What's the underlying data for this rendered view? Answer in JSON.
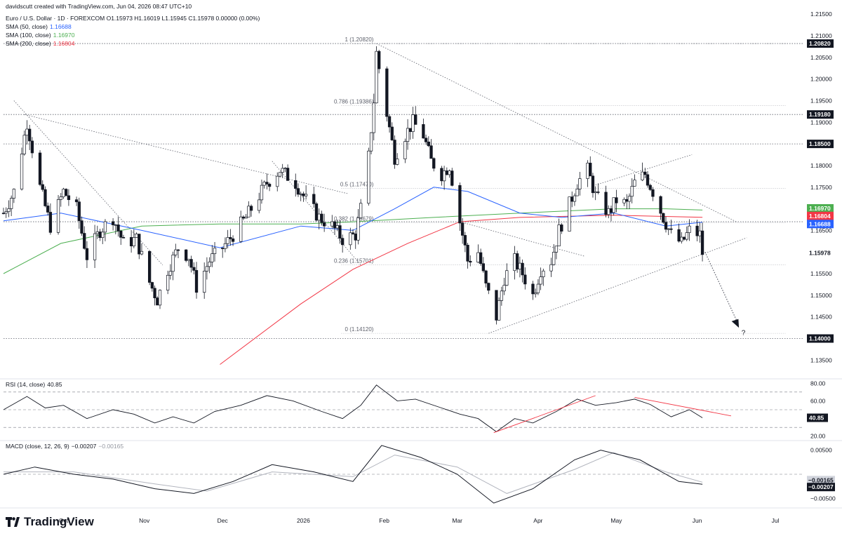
{
  "header": {
    "creator_line": "davidscutt created with TradingView.com, Jun 04, 2026 08:47 UTC+10",
    "symbol_line": "Euro / U.S. Dollar · 1D · FOREXCOM  O1.15973  H1.16019  L1.15945  C1.15978  0.00000 (0.00%)",
    "sma50_label": "SMA (50, close)",
    "sma50_value": "1.16688",
    "sma100_label": "SMA (100, close)",
    "sma100_value": "1.16970",
    "sma200_label": "SMA (200, close)",
    "sma200_value": "1.16804"
  },
  "rsi_header": {
    "label": "RSI (14, close)",
    "value": "40.85"
  },
  "macd_header": {
    "label": "MACD (close, 12, 26, 9)",
    "value1": "−0.00207",
    "value2": "−0.00165"
  },
  "footer": {
    "brand": "TradingView"
  },
  "colors": {
    "up": "#ffffff",
    "down": "#131722",
    "sma50": "#2962ff",
    "sma100": "#4caf50",
    "sma200": "#f23645",
    "rsi": "#131722",
    "macd": "#131722",
    "signal": "#b2b5be",
    "trend_red": "#f23645"
  },
  "chart_data": {
    "type": "candlestick",
    "symbol": "EUR/USD",
    "timeframe": "1D",
    "ylim": [
      1.131,
      1.216
    ],
    "y_ticks": [
      "1.21500",
      "1.21000",
      "1.20500",
      "1.20000",
      "1.19500",
      "1.19000",
      "1.18000",
      "1.17500",
      "1.16500",
      "1.15500",
      "1.15000",
      "1.14500",
      "1.13500"
    ],
    "x_ticks": [
      {
        "label": "Oct",
        "date": "2025-10-01"
      },
      {
        "label": "Nov",
        "date": "2025-11-01"
      },
      {
        "label": "Dec",
        "date": "2025-12-01"
      },
      {
        "label": "2026",
        "date": "2026-01-01"
      },
      {
        "label": "Feb",
        "date": "2026-02-01"
      },
      {
        "label": "Mar",
        "date": "2026-03-01"
      },
      {
        "label": "Apr",
        "date": "2026-04-01"
      },
      {
        "label": "May",
        "date": "2026-05-01"
      },
      {
        "label": "Jun",
        "date": "2026-06-01"
      },
      {
        "label": "Jul",
        "date": "2026-07-01"
      }
    ],
    "close_path": [
      [
        "2025-09-08",
        1.169
      ],
      [
        "2025-09-12",
        1.174
      ],
      [
        "2025-09-17",
        1.19
      ],
      [
        "2025-09-22",
        1.175
      ],
      [
        "2025-09-26",
        1.166
      ],
      [
        "2025-10-01",
        1.174
      ],
      [
        "2025-10-06",
        1.17
      ],
      [
        "2025-10-10",
        1.159
      ],
      [
        "2025-10-15",
        1.165
      ],
      [
        "2025-10-20",
        1.168
      ],
      [
        "2025-10-24",
        1.162
      ],
      [
        "2025-10-29",
        1.163
      ],
      [
        "2025-11-03",
        1.153
      ],
      [
        "2025-11-06",
        1.149
      ],
      [
        "2025-11-10",
        1.156
      ],
      [
        "2025-11-14",
        1.161
      ],
      [
        "2025-11-18",
        1.159
      ],
      [
        "2025-11-21",
        1.152
      ],
      [
        "2025-11-26",
        1.158
      ],
      [
        "2025-12-01",
        1.161
      ],
      [
        "2025-12-05",
        1.164
      ],
      [
        "2025-12-10",
        1.168
      ],
      [
        "2025-12-15",
        1.173
      ],
      [
        "2025-12-18",
        1.176
      ],
      [
        "2025-12-23",
        1.179
      ],
      [
        "2025-12-29",
        1.176
      ],
      [
        "2026-01-02",
        1.172
      ],
      [
        "2026-01-07",
        1.168
      ],
      [
        "2026-01-12",
        1.166
      ],
      [
        "2026-01-16",
        1.163
      ],
      [
        "2026-01-21",
        1.164
      ],
      [
        "2026-01-23",
        1.17
      ],
      [
        "2026-01-26",
        1.182
      ],
      [
        "2026-01-28",
        1.195
      ],
      [
        "2026-01-29",
        1.206
      ],
      [
        "2026-02-02",
        1.192
      ],
      [
        "2026-02-05",
        1.182
      ],
      [
        "2026-02-09",
        1.187
      ],
      [
        "2026-02-12",
        1.19
      ],
      [
        "2026-02-16",
        1.187
      ],
      [
        "2026-02-19",
        1.181
      ],
      [
        "2026-02-23",
        1.178
      ],
      [
        "2026-02-26",
        1.18
      ],
      [
        "2026-03-02",
        1.167
      ],
      [
        "2026-03-05",
        1.158
      ],
      [
        "2026-03-09",
        1.16
      ],
      [
        "2026-03-12",
        1.152
      ],
      [
        "2026-03-16",
        1.145
      ],
      [
        "2026-03-19",
        1.154
      ],
      [
        "2026-03-23",
        1.158
      ],
      [
        "2026-03-26",
        1.155
      ],
      [
        "2026-03-30",
        1.15
      ],
      [
        "2026-04-02",
        1.156
      ],
      [
        "2026-04-06",
        1.158
      ],
      [
        "2026-04-09",
        1.165
      ],
      [
        "2026-04-13",
        1.171
      ],
      [
        "2026-04-16",
        1.176
      ],
      [
        "2026-04-20",
        1.179
      ],
      [
        "2026-04-23",
        1.173
      ],
      [
        "2026-04-28",
        1.169
      ],
      [
        "2026-05-01",
        1.172
      ],
      [
        "2026-05-05",
        1.171
      ],
      [
        "2026-05-08",
        1.176
      ],
      [
        "2026-05-12",
        1.178
      ],
      [
        "2026-05-15",
        1.174
      ],
      [
        "2026-05-19",
        1.168
      ],
      [
        "2026-05-22",
        1.164
      ],
      [
        "2026-05-26",
        1.162
      ],
      [
        "2026-05-29",
        1.165
      ],
      [
        "2026-06-02",
        1.164
      ],
      [
        "2026-06-03",
        1.15978
      ]
    ],
    "horizontal_levels": [
      "1.20820",
      "1.19180",
      "1.18500",
      "1.16700",
      "1.14000"
    ],
    "price_labels": {
      "sma100": "1.16970",
      "sma200": "1.16804",
      "level": "1.16700",
      "sma50": "1.16688",
      "last": "1.15978"
    },
    "fibonacci": [
      {
        "label": "1 (1.20820)",
        "price": 1.2082
      },
      {
        "label": "0.786 (1.19386)",
        "price": 1.19386
      },
      {
        "label": "0.5 (1.17470)",
        "price": 1.1747
      },
      {
        "label": "0.382 (1.16679)",
        "price": 1.16679
      },
      {
        "label": "0.236 (1.15701)",
        "price": 1.15701
      },
      {
        "label": "0 (1.14120)",
        "price": 1.1412
      }
    ],
    "sma_paths": {
      "sma50": [
        [
          "2025-09-08",
          1.1672
        ],
        [
          "2025-09-30",
          1.169
        ],
        [
          "2025-10-31",
          1.165
        ],
        [
          "2025-11-30",
          1.161
        ],
        [
          "2025-12-31",
          1.166
        ],
        [
          "2026-01-20",
          1.165
        ],
        [
          "2026-02-05",
          1.17
        ],
        [
          "2026-02-20",
          1.175
        ],
        [
          "2026-03-05",
          1.174
        ],
        [
          "2026-03-25",
          1.169
        ],
        [
          "2026-04-10",
          1.168
        ],
        [
          "2026-04-30",
          1.169
        ],
        [
          "2026-05-20",
          1.166
        ],
        [
          "2026-06-03",
          1.16688
        ]
      ],
      "sma100": [
        [
          "2025-09-08",
          1.155
        ],
        [
          "2025-09-30",
          1.162
        ],
        [
          "2025-10-31",
          1.166
        ],
        [
          "2025-11-30",
          1.1665
        ],
        [
          "2025-12-31",
          1.1665
        ],
        [
          "2026-01-20",
          1.167
        ],
        [
          "2026-02-20",
          1.168
        ],
        [
          "2026-03-25",
          1.169
        ],
        [
          "2026-04-30",
          1.17
        ],
        [
          "2026-05-20",
          1.17
        ],
        [
          "2026-06-03",
          1.1697
        ]
      ],
      "sma200": [
        [
          "2025-11-30",
          1.134
        ],
        [
          "2025-12-31",
          1.148
        ],
        [
          "2026-01-20",
          1.156
        ],
        [
          "2026-02-10",
          1.162
        ],
        [
          "2026-03-02",
          1.167
        ],
        [
          "2026-03-25",
          1.168
        ],
        [
          "2026-04-30",
          1.1685
        ],
        [
          "2026-06-03",
          1.16804
        ]
      ]
    },
    "rsi": {
      "ylim": [
        15,
        85
      ],
      "levels": [
        70,
        50,
        30
      ],
      "tick_labels": [
        "80.00",
        "60.00",
        "20.00"
      ],
      "last": "40.85",
      "path": [
        [
          "2025-09-08",
          50
        ],
        [
          "2025-09-17",
          65
        ],
        [
          "2025-09-24",
          52
        ],
        [
          "2025-10-01",
          55
        ],
        [
          "2025-10-10",
          40
        ],
        [
          "2025-10-20",
          50
        ],
        [
          "2025-10-28",
          45
        ],
        [
          "2025-11-05",
          35
        ],
        [
          "2025-11-12",
          42
        ],
        [
          "2025-11-20",
          35
        ],
        [
          "2025-11-28",
          48
        ],
        [
          "2025-12-08",
          55
        ],
        [
          "2025-12-18",
          66
        ],
        [
          "2025-12-28",
          60
        ],
        [
          "2026-01-08",
          48
        ],
        [
          "2026-01-16",
          40
        ],
        [
          "2026-01-23",
          55
        ],
        [
          "2026-01-29",
          78
        ],
        [
          "2026-02-06",
          60
        ],
        [
          "2026-02-13",
          62
        ],
        [
          "2026-02-23",
          52
        ],
        [
          "2026-03-02",
          45
        ],
        [
          "2026-03-09",
          40
        ],
        [
          "2026-03-16",
          25
        ],
        [
          "2026-03-23",
          40
        ],
        [
          "2026-03-30",
          35
        ],
        [
          "2026-04-08",
          48
        ],
        [
          "2026-04-16",
          62
        ],
        [
          "2026-04-23",
          55
        ],
        [
          "2026-05-01",
          58
        ],
        [
          "2026-05-08",
          62
        ],
        [
          "2026-05-14",
          56
        ],
        [
          "2026-05-22",
          42
        ],
        [
          "2026-05-29",
          50
        ],
        [
          "2026-06-03",
          40.85
        ]
      ]
    },
    "macd": {
      "ylim": [
        -0.007,
        0.007
      ],
      "tick_labels": [
        "0.00500",
        "−0.00500"
      ],
      "macd_last": "−0.00207",
      "signal_last": "−0.00165",
      "macd_path": [
        [
          "2025-09-08",
          0.0
        ],
        [
          "2025-09-20",
          0.0015
        ],
        [
          "2025-10-05",
          0.0
        ],
        [
          "2025-10-20",
          -0.001
        ],
        [
          "2025-11-05",
          -0.003
        ],
        [
          "2025-11-20",
          -0.004
        ],
        [
          "2025-12-05",
          -0.0015
        ],
        [
          "2025-12-20",
          0.002
        ],
        [
          "2026-01-05",
          0.0005
        ],
        [
          "2026-01-20",
          -0.0015
        ],
        [
          "2026-01-31",
          0.006
        ],
        [
          "2026-02-15",
          0.0035
        ],
        [
          "2026-03-01",
          0.0
        ],
        [
          "2026-03-15",
          -0.006
        ],
        [
          "2026-03-30",
          -0.003
        ],
        [
          "2026-04-15",
          0.003
        ],
        [
          "2026-04-25",
          0.005
        ],
        [
          "2026-05-10",
          0.003
        ],
        [
          "2026-05-25",
          -0.0015
        ],
        [
          "2026-06-03",
          -0.00207
        ]
      ],
      "signal_path": [
        [
          "2025-09-08",
          0.0005
        ],
        [
          "2025-10-05",
          0.0005
        ],
        [
          "2025-11-05",
          -0.002
        ],
        [
          "2025-11-25",
          -0.0035
        ],
        [
          "2025-12-20",
          0.0005
        ],
        [
          "2026-01-20",
          -0.0005
        ],
        [
          "2026-02-05",
          0.004
        ],
        [
          "2026-03-01",
          0.0015
        ],
        [
          "2026-03-20",
          -0.004
        ],
        [
          "2026-04-15",
          0.001
        ],
        [
          "2026-04-30",
          0.0045
        ],
        [
          "2026-05-20",
          0.0005
        ],
        [
          "2026-06-03",
          -0.00165
        ]
      ]
    },
    "annotation": "?"
  }
}
